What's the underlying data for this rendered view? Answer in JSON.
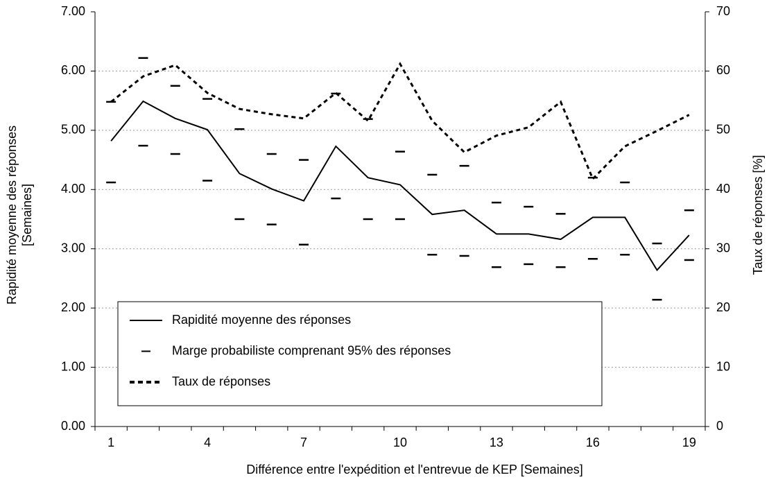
{
  "chart_data": {
    "type": "line",
    "xlabel": "Différence entre l'expédition et l'entrevue de KEP [Semaines]",
    "ylabel": [
      "Rapidité moyenne des réponses",
      "[Semaines]"
    ],
    "y2label": "Taux de réponses [%]",
    "categories": [
      "1",
      null,
      null,
      "4",
      null,
      null,
      "7",
      null,
      null,
      "10",
      null,
      null,
      "13",
      null,
      null,
      "16",
      null,
      null,
      "19"
    ],
    "ylim": [
      0,
      7
    ],
    "yticks": [
      {
        "value": 0,
        "label": "0.00"
      },
      {
        "value": 1,
        "label": "1.00"
      },
      {
        "value": 2,
        "label": "2.00"
      },
      {
        "value": 3,
        "label": "3.00"
      },
      {
        "value": 4,
        "label": "4.00"
      },
      {
        "value": 5,
        "label": "5.00"
      },
      {
        "value": 6,
        "label": "6.00"
      },
      {
        "value": 7,
        "label": "7.00"
      }
    ],
    "y2lim": [
      0,
      70
    ],
    "y2ticks": [
      0,
      10,
      20,
      30,
      40,
      50,
      60,
      70
    ],
    "grid": true,
    "series": [
      {
        "name": "Rapidité moyenne des réponses",
        "color": "#000000",
        "values": [
          4.82,
          5.49,
          5.2,
          5.01,
          4.27,
          4.01,
          3.81,
          4.73,
          4.2,
          4.08,
          3.58,
          3.65,
          3.25,
          3.25,
          3.16,
          3.53,
          3.53,
          2.64,
          3.23
        ]
      },
      {
        "name": "Marge probabiliste comprenant 95% des réponses",
        "color": "#000000",
        "high": [
          5.48,
          6.22,
          5.75,
          5.53,
          5.02,
          4.6,
          4.5,
          5.62,
          5.19,
          4.64,
          4.25,
          4.4,
          3.78,
          3.71,
          3.59,
          4.2,
          4.12,
          3.09,
          3.65
        ],
        "low": [
          4.12,
          4.74,
          4.6,
          4.15,
          3.5,
          3.41,
          3.07,
          3.85,
          3.5,
          3.5,
          2.9,
          2.88,
          2.69,
          2.74,
          2.69,
          2.83,
          2.9,
          2.14,
          2.81
        ]
      },
      {
        "name": "Taux de réponses",
        "color": "#000000",
        "axis": "y2",
        "values": [
          54.8,
          59.1,
          61.0,
          56.3,
          53.6,
          52.7,
          52.0,
          56.3,
          51.6,
          61.2,
          51.6,
          46.3,
          49.1,
          50.5,
          54.8,
          41.8,
          47.3,
          49.9,
          52.6
        ]
      }
    ]
  }
}
